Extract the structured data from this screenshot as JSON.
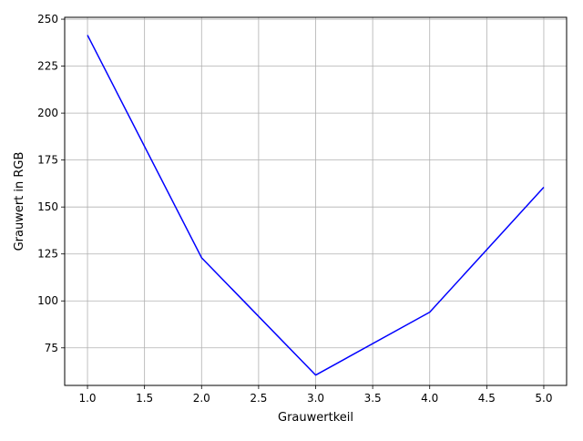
{
  "chart_data": {
    "type": "line",
    "title": "",
    "xlabel": "Grauwertkeil",
    "ylabel": "Grauwert in RGB",
    "x": [
      1.0,
      2.0,
      3.0,
      4.0,
      5.0
    ],
    "series": [
      {
        "name": "",
        "values": [
          241.5,
          123,
          60.5,
          94,
          160.5
        ],
        "color": "#0000ff"
      }
    ],
    "xlim": [
      0.8,
      5.2
    ],
    "ylim": [
      55,
      251
    ],
    "xticks": [
      "1.0",
      "1.5",
      "2.0",
      "2.5",
      "3.0",
      "3.5",
      "4.0",
      "4.5",
      "5.0"
    ],
    "yticks": [
      "75",
      "100",
      "125",
      "150",
      "175",
      "200",
      "225",
      "250"
    ],
    "grid": true,
    "grid_color": "#b0b0b0",
    "legend": "none"
  }
}
